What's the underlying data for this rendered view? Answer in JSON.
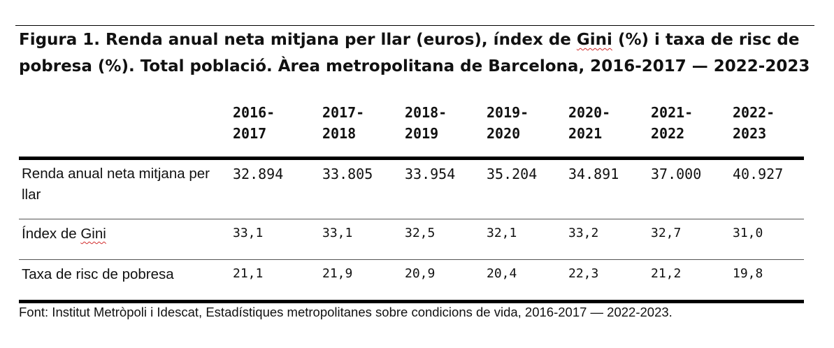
{
  "title": {
    "part1": "Figura 1. Renda anual neta mitjana per llar (euros), índex de ",
    "gini_word": "Gini",
    "part2": " (%) i taxa de risc de pobresa (%). Total població. Àrea metropolitana de Barcelona, 2016-2017 — 2022-2023"
  },
  "table": {
    "columns": [
      {
        "line1": "2016-",
        "line2": "2017"
      },
      {
        "line1": "2017-",
        "line2": "2018"
      },
      {
        "line1": "2018-",
        "line2": "2019"
      },
      {
        "line1": "2019-",
        "line2": "2020"
      },
      {
        "line1": "2020-",
        "line2": "2021"
      },
      {
        "line1": "2021-",
        "line2": "2022"
      },
      {
        "line1": "2022-",
        "line2": "2023"
      }
    ],
    "rows": [
      {
        "label": "Renda anual neta mitjana per llar",
        "values": [
          "32.894",
          "33.805",
          "33.954",
          "35.204",
          "34.891",
          "37.000",
          "40.927"
        ]
      },
      {
        "label_prefix": "Índex de ",
        "label_word": "Gini",
        "values": [
          "33,1",
          "33,1",
          "32,5",
          "32,1",
          "33,2",
          "32,7",
          "31,0"
        ]
      },
      {
        "label": "Taxa de risc de pobresa",
        "values": [
          "21,1",
          "21,9",
          "20,9",
          "20,4",
          "22,3",
          "21,2",
          "19,8"
        ]
      }
    ]
  },
  "source": "Font: Institut Metròpoli i Idescat, Estadístiques metropolitanes sobre condicions de vida, 2016-2017 — 2022-2023."
}
